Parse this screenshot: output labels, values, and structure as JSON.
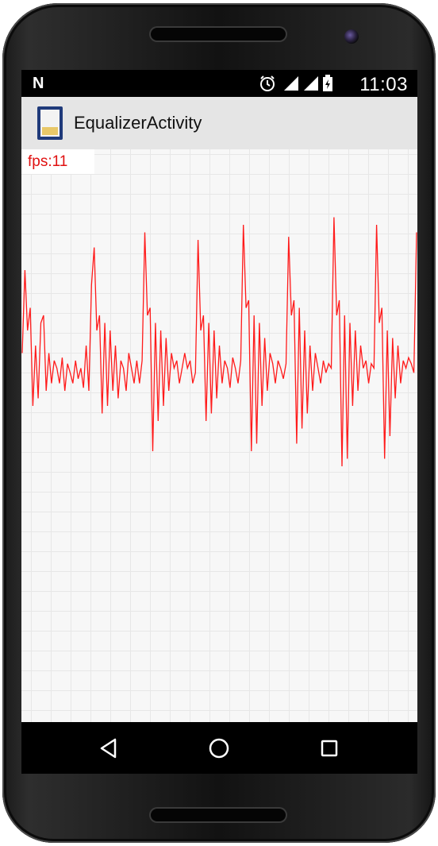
{
  "status_bar": {
    "notification_icon": "N",
    "icons": [
      "alarm-icon",
      "signal-icon",
      "wifi-icon",
      "battery-icon"
    ],
    "time": "11:03"
  },
  "action_bar": {
    "app_icon": "app-icon",
    "title": "EqualizerActivity"
  },
  "overlay": {
    "fps": "fps:11"
  },
  "chart_data": {
    "type": "line",
    "title": "",
    "xlabel": "",
    "ylabel": "",
    "grid": true,
    "color": "#ff1a1a",
    "y": [
      0.15,
      0.7,
      0.3,
      0.45,
      -0.2,
      0.2,
      -0.15,
      0.35,
      0.4,
      -0.1,
      0.15,
      -0.05,
      0.1,
      0.05,
      -0.05,
      0.12,
      -0.1,
      0.08,
      0.02,
      -0.05,
      0.1,
      -0.02,
      0.05,
      -0.08,
      0.2,
      -0.1,
      0.6,
      0.85,
      0.3,
      0.4,
      -0.25,
      0.35,
      -0.2,
      0.3,
      -0.1,
      0.2,
      -0.15,
      0.1,
      0.05,
      -0.1,
      0.15,
      0.05,
      -0.05,
      0.1,
      -0.05,
      0.1,
      0.95,
      0.4,
      0.45,
      -0.5,
      0.35,
      -0.3,
      0.3,
      -0.2,
      0.25,
      -0.1,
      0.15,
      0.05,
      0.1,
      -0.05,
      0.05,
      0.15,
      0.05,
      0.1,
      -0.05,
      0.02,
      0.9,
      0.3,
      0.4,
      -0.3,
      0.35,
      -0.25,
      0.3,
      -0.15,
      0.2,
      -0.05,
      0.1,
      0.05,
      -0.08,
      0.12,
      0.05,
      -0.05,
      0.1,
      1.0,
      0.45,
      0.5,
      -0.5,
      0.4,
      -0.45,
      0.35,
      -0.2,
      0.25,
      -0.1,
      0.15,
      0.08,
      -0.05,
      0.1,
      0.05,
      -0.02,
      0.08,
      0.92,
      0.4,
      0.5,
      -0.45,
      0.45,
      -0.35,
      0.3,
      -0.25,
      0.2,
      -0.1,
      0.15,
      0.05,
      -0.05,
      0.1,
      0.02,
      0.08,
      0.05,
      1.05,
      0.4,
      0.5,
      -0.6,
      0.4,
      -0.55,
      0.35,
      -0.2,
      0.3,
      -0.1,
      0.2,
      0.05,
      0.1,
      -0.05,
      0.08,
      0.05,
      1.0,
      0.35,
      0.45,
      -0.55,
      0.3,
      -0.4,
      0.25,
      -0.15,
      0.2,
      -0.05,
      0.1,
      0.05,
      0.12,
      0.08,
      0.02,
      0.95
    ]
  },
  "nav_bar": {
    "buttons": [
      "back-icon",
      "home-icon",
      "recents-icon"
    ]
  }
}
